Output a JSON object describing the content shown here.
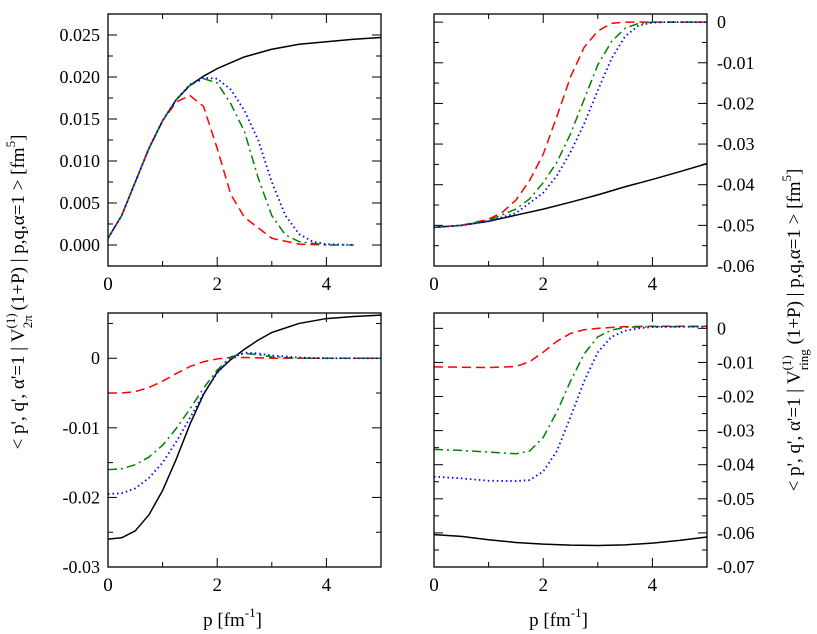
{
  "ylabel_left": {
    "prefix": "< p', q', α'=1 | V",
    "sup": "(1)",
    "sub": "2π",
    "suffix": " (1+P) | p,q,α=1 > [fm",
    "unit_sup": "5",
    "close": "]"
  },
  "ylabel_right": {
    "prefix": "< p', q', α'=1 | V",
    "sup": "(1)",
    "sub": "ring",
    "suffix": " (1+P) | p,q,α=1 > [fm",
    "unit_sup": "5",
    "close": "]"
  },
  "chart_data": [
    {
      "id": "top-left",
      "type": "line",
      "xlabel": "",
      "xlim": [
        0,
        5
      ],
      "ylim": [
        -0.0025,
        0.0275
      ],
      "xticks": [
        0,
        2,
        4
      ],
      "xtick_labels": [
        "0",
        "2",
        "4"
      ],
      "yticks": [
        0,
        0.005,
        0.01,
        0.015,
        0.02,
        0.025
      ],
      "ytick_labels": [
        "0.000",
        "0.005",
        "0.010",
        "0.015",
        "0.020",
        "0.025"
      ],
      "ytick_side": "left",
      "series": [
        {
          "name": "black",
          "color": "#000000",
          "style": "solid",
          "x": [
            0,
            0.25,
            0.5,
            0.75,
            1,
            1.25,
            1.5,
            1.75,
            2,
            2.5,
            3,
            3.5,
            4,
            4.5,
            5
          ],
          "y": [
            0.0008,
            0.0035,
            0.0075,
            0.0115,
            0.0148,
            0.0173,
            0.019,
            0.0201,
            0.021,
            0.0224,
            0.0233,
            0.0239,
            0.0242,
            0.0245,
            0.0247
          ]
        },
        {
          "name": "red",
          "color": "#ff0000",
          "style": "dashed",
          "x": [
            0,
            0.25,
            0.5,
            0.75,
            1,
            1.25,
            1.5,
            1.75,
            2,
            2.25,
            2.5,
            3,
            3.5,
            4
          ],
          "y": [
            0.0008,
            0.0035,
            0.0075,
            0.0115,
            0.0148,
            0.017,
            0.0178,
            0.0165,
            0.0115,
            0.006,
            0.0033,
            0.0008,
            0.0001,
            0
          ]
        },
        {
          "name": "green",
          "color": "#008000",
          "style": "dashdot",
          "x": [
            0,
            0.25,
            0.5,
            0.75,
            1,
            1.25,
            1.5,
            1.75,
            2,
            2.25,
            2.5,
            2.75,
            3,
            3.25,
            3.5,
            4,
            4.5
          ],
          "y": [
            0.0008,
            0.0035,
            0.0075,
            0.0115,
            0.0148,
            0.0173,
            0.019,
            0.0198,
            0.0193,
            0.0168,
            0.0135,
            0.008,
            0.0035,
            0.0012,
            0.0004,
            0,
            0
          ]
        },
        {
          "name": "blue",
          "color": "#0000ff",
          "style": "dotted",
          "x": [
            0,
            0.25,
            0.5,
            0.75,
            1,
            1.25,
            1.5,
            1.75,
            2,
            2.25,
            2.5,
            2.75,
            3,
            3.25,
            3.5,
            3.75,
            4,
            4.5
          ],
          "y": [
            0.0008,
            0.0035,
            0.0075,
            0.0115,
            0.0148,
            0.0173,
            0.0191,
            0.0199,
            0.0198,
            0.0185,
            0.016,
            0.0125,
            0.0075,
            0.0035,
            0.0013,
            0.0004,
            0.0001,
            0
          ]
        }
      ]
    },
    {
      "id": "top-right",
      "type": "line",
      "xlabel": "",
      "xlim": [
        0,
        5
      ],
      "ylim": [
        -0.06,
        0.002
      ],
      "xticks": [
        0,
        2,
        4
      ],
      "xtick_labels": [
        "0",
        "2",
        "4"
      ],
      "yticks": [
        0,
        -0.01,
        -0.02,
        -0.03,
        -0.04,
        -0.05,
        -0.06
      ],
      "ytick_labels": [
        "0",
        "-0.01",
        "-0.02",
        "-0.03",
        "-0.04",
        "-0.05",
        "-0.06"
      ],
      "ytick_side": "right",
      "series": [
        {
          "name": "black",
          "color": "#000000",
          "style": "solid",
          "x": [
            0,
            0.5,
            1,
            1.5,
            2,
            2.5,
            3,
            3.5,
            4,
            4.5,
            5
          ],
          "y": [
            -0.0505,
            -0.05,
            -0.049,
            -0.0475,
            -0.046,
            -0.0443,
            -0.0425,
            -0.0405,
            -0.0387,
            -0.0368,
            -0.0348
          ]
        },
        {
          "name": "red",
          "color": "#ff0000",
          "style": "dashed",
          "x": [
            0,
            0.5,
            1,
            1.25,
            1.5,
            1.75,
            2,
            2.25,
            2.5,
            2.75,
            3,
            3.25,
            3.5,
            4,
            5
          ],
          "y": [
            -0.0505,
            -0.05,
            -0.0485,
            -0.0468,
            -0.0438,
            -0.039,
            -0.0325,
            -0.0232,
            -0.0135,
            -0.0062,
            -0.0022,
            -0.0003,
            0,
            0,
            0
          ]
        },
        {
          "name": "green",
          "color": "#008000",
          "style": "dashdot",
          "x": [
            0,
            0.5,
            1,
            1.5,
            1.75,
            2,
            2.25,
            2.5,
            2.75,
            3,
            3.25,
            3.5,
            3.75,
            4,
            5
          ],
          "y": [
            -0.0505,
            -0.05,
            -0.0488,
            -0.046,
            -0.0435,
            -0.0395,
            -0.0345,
            -0.0275,
            -0.019,
            -0.0105,
            -0.0048,
            -0.0015,
            -0.0003,
            0,
            0
          ]
        },
        {
          "name": "blue",
          "color": "#0000ff",
          "style": "dotted",
          "x": [
            0,
            0.5,
            1,
            1.5,
            2,
            2.25,
            2.5,
            2.75,
            3,
            3.25,
            3.5,
            3.75,
            4,
            4.25,
            5
          ],
          "y": [
            -0.0505,
            -0.05,
            -0.049,
            -0.047,
            -0.042,
            -0.0378,
            -0.032,
            -0.025,
            -0.0168,
            -0.009,
            -0.0035,
            -0.0008,
            -0.0001,
            0,
            0
          ]
        }
      ]
    },
    {
      "id": "bottom-left",
      "type": "line",
      "xlabel": "p [fm",
      "xlabel_sup": "-1",
      "xlabel_close": "]",
      "xlim": [
        0,
        5
      ],
      "ylim": [
        -0.03,
        0.0065
      ],
      "xticks": [
        0,
        2,
        4
      ],
      "xtick_labels": [
        "0",
        "2",
        "4"
      ],
      "yticks": [
        0,
        -0.01,
        -0.02,
        -0.03
      ],
      "ytick_labels": [
        "0",
        "-0.01",
        "-0.02",
        "-0.03"
      ],
      "ytick_side": "left",
      "series": [
        {
          "name": "black",
          "color": "#000000",
          "style": "solid",
          "x": [
            0,
            0.25,
            0.5,
            0.75,
            1,
            1.25,
            1.5,
            1.75,
            2,
            2.25,
            2.5,
            2.75,
            3,
            3.5,
            4,
            4.5,
            5
          ],
          "y": [
            -0.026,
            -0.0258,
            -0.0248,
            -0.0225,
            -0.019,
            -0.0145,
            -0.0095,
            -0.0052,
            -0.002,
            -0.0002,
            0.0013,
            0.0026,
            0.0037,
            0.005,
            0.0057,
            0.006,
            0.0062
          ]
        },
        {
          "name": "red",
          "color": "#ff0000",
          "style": "dashed",
          "x": [
            0,
            0.25,
            0.5,
            0.75,
            1,
            1.25,
            1.5,
            1.75,
            2,
            2.25,
            2.5,
            3,
            4,
            5
          ],
          "y": [
            -0.005,
            -0.005,
            -0.0048,
            -0.0042,
            -0.0033,
            -0.0022,
            -0.0012,
            -0.0005,
            -0.0001,
            0.0001,
            0.0001,
            0,
            0,
            0
          ]
        },
        {
          "name": "green",
          "color": "#008000",
          "style": "dashdot",
          "x": [
            0,
            0.25,
            0.5,
            0.75,
            1,
            1.25,
            1.5,
            1.75,
            2,
            2.25,
            2.5,
            2.75,
            3,
            3.5,
            4,
            5
          ],
          "y": [
            -0.016,
            -0.0159,
            -0.0153,
            -0.0142,
            -0.0125,
            -0.0101,
            -0.0073,
            -0.0043,
            -0.0017,
            0.0002,
            0.0007,
            0.0005,
            0.0002,
            0,
            0,
            0
          ]
        },
        {
          "name": "blue",
          "color": "#0000ff",
          "style": "dotted",
          "x": [
            0,
            0.25,
            0.5,
            0.75,
            1,
            1.25,
            1.5,
            1.75,
            2,
            2.25,
            2.5,
            2.75,
            3,
            3.5,
            4,
            5
          ],
          "y": [
            -0.0195,
            -0.0194,
            -0.0187,
            -0.0172,
            -0.015,
            -0.012,
            -0.0086,
            -0.0051,
            -0.0021,
            0,
            0.0008,
            0.0007,
            0.0004,
            0.0001,
            0,
            0
          ]
        }
      ]
    },
    {
      "id": "bottom-right",
      "type": "line",
      "xlabel": "p [fm",
      "xlabel_sup": "-1",
      "xlabel_close": "]",
      "xlim": [
        0,
        5
      ],
      "ylim": [
        -0.07,
        0.0045
      ],
      "xticks": [
        0,
        2,
        4
      ],
      "xtick_labels": [
        "0",
        "2",
        "4"
      ],
      "yticks": [
        0,
        -0.01,
        -0.02,
        -0.03,
        -0.04,
        -0.05,
        -0.06,
        -0.07
      ],
      "ytick_labels": [
        "0",
        "-0.01",
        "-0.02",
        "-0.03",
        "-0.04",
        "-0.05",
        "-0.06",
        "-0.07"
      ],
      "ytick_side": "right",
      "series": [
        {
          "name": "black",
          "color": "#000000",
          "style": "solid",
          "x": [
            0,
            0.5,
            1,
            1.5,
            2,
            2.5,
            3,
            3.5,
            4,
            4.5,
            5
          ],
          "y": [
            -0.0605,
            -0.061,
            -0.062,
            -0.0628,
            -0.0633,
            -0.0636,
            -0.0637,
            -0.0635,
            -0.063,
            -0.0622,
            -0.0612
          ]
        },
        {
          "name": "red",
          "color": "#ff0000",
          "style": "dashed",
          "x": [
            0,
            0.5,
            1,
            1.5,
            1.75,
            2,
            2.25,
            2.5,
            2.75,
            3,
            3.5,
            4,
            5
          ],
          "y": [
            -0.0113,
            -0.0114,
            -0.0115,
            -0.0112,
            -0.0098,
            -0.007,
            -0.0038,
            -0.0015,
            -0.0004,
            0,
            0.0005,
            0.0006,
            0.0006
          ]
        },
        {
          "name": "green",
          "color": "#008000",
          "style": "dashdot",
          "x": [
            0,
            0.5,
            1,
            1.5,
            1.75,
            2,
            2.25,
            2.5,
            2.75,
            3,
            3.25,
            3.5,
            4,
            5
          ],
          "y": [
            -0.0355,
            -0.0358,
            -0.0363,
            -0.0368,
            -0.036,
            -0.032,
            -0.0245,
            -0.0155,
            -0.0075,
            -0.0025,
            -0.0005,
            0.0003,
            0.0005,
            0.0005
          ]
        },
        {
          "name": "blue",
          "color": "#0000ff",
          "style": "dotted",
          "x": [
            0,
            0.5,
            1,
            1.5,
            1.75,
            2,
            2.25,
            2.5,
            2.75,
            3,
            3.25,
            3.5,
            3.75,
            4,
            5
          ],
          "y": [
            -0.0435,
            -0.044,
            -0.0447,
            -0.0448,
            -0.0445,
            -0.042,
            -0.036,
            -0.026,
            -0.0155,
            -0.007,
            -0.0025,
            -0.0007,
            0,
            0.0004,
            0.0005
          ]
        }
      ]
    }
  ]
}
